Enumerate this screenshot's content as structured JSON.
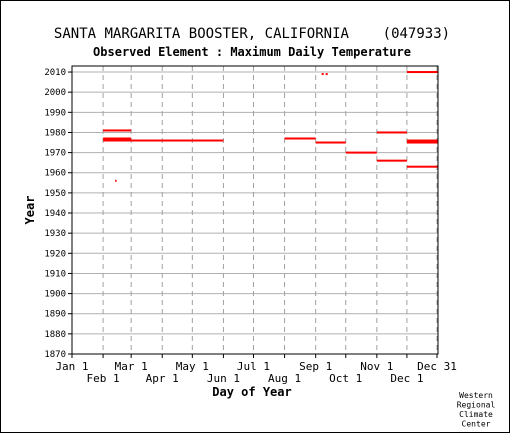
{
  "chart_data": {
    "type": "scatter",
    "title": "SANTA MARGARITA BOOSTER, CALIFORNIA    (047933)",
    "subtitle": "Observed Element : Maximum Daily Temperature",
    "xlabel": "Day of Year",
    "ylabel": "Year",
    "xlim": [
      1,
      366
    ],
    "ylim": [
      1870,
      2013
    ],
    "grid": true,
    "series_color": "#ff0000",
    "y_ticks": [
      "1870",
      "1880",
      "1890",
      "1900",
      "1910",
      "1920",
      "1930",
      "1940",
      "1950",
      "1960",
      "1970",
      "1980",
      "1990",
      "2000",
      "2010"
    ],
    "x_ticks_upper": [
      {
        "label": "Jan 1",
        "day": 1
      },
      {
        "label": "Mar 1",
        "day": 60
      },
      {
        "label": "May 1",
        "day": 121
      },
      {
        "label": "Jul 1",
        "day": 182
      },
      {
        "label": "Sep 1",
        "day": 244
      },
      {
        "label": "Nov 1",
        "day": 305
      },
      {
        "label": "Dec 31",
        "day": 365
      }
    ],
    "x_ticks_lower": [
      {
        "label": "Feb 1",
        "day": 32
      },
      {
        "label": "Apr 1",
        "day": 91
      },
      {
        "label": "Jun 1",
        "day": 152
      },
      {
        "label": "Aug 1",
        "day": 213
      },
      {
        "label": "Oct 1",
        "day": 274
      },
      {
        "label": "Dec 1",
        "day": 335
      }
    ],
    "segments": [
      {
        "year": 2010,
        "start": 335,
        "end": 366
      },
      {
        "year": 2009,
        "start": 250,
        "end": 252
      },
      {
        "year": 2009,
        "start": 254,
        "end": 256
      },
      {
        "year": 1981,
        "start": 32,
        "end": 60
      },
      {
        "year": 1980,
        "start": 305,
        "end": 335
      },
      {
        "year": 1977,
        "start": 32,
        "end": 60
      },
      {
        "year": 1977,
        "start": 213,
        "end": 244
      },
      {
        "year": 1976,
        "start": 32,
        "end": 152
      },
      {
        "year": 1976,
        "start": 335,
        "end": 366
      },
      {
        "year": 1975,
        "start": 244,
        "end": 274
      },
      {
        "year": 1975,
        "start": 335,
        "end": 366
      },
      {
        "year": 1970,
        "start": 274,
        "end": 305
      },
      {
        "year": 1966,
        "start": 305,
        "end": 335
      },
      {
        "year": 1963,
        "start": 335,
        "end": 366
      },
      {
        "year": 1956,
        "start": 44,
        "end": 45
      }
    ]
  },
  "credit": [
    "Western",
    "Regional",
    "Climate",
    "Center"
  ]
}
